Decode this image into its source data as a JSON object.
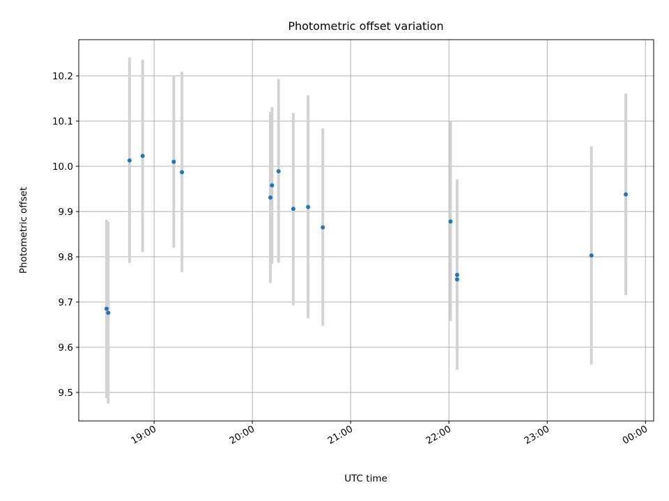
{
  "chart_data": {
    "type": "scatter",
    "title": "Photometric offset variation",
    "xlabel": "UTC time",
    "ylabel": "Photometric offset",
    "xlim": [
      "18:14",
      "00:05"
    ],
    "ylim": [
      9.437,
      10.28
    ],
    "x_ticks": [
      "19:00",
      "20:00",
      "21:00",
      "22:00",
      "23:00",
      "00:00"
    ],
    "y_ticks": [
      9.5,
      9.6,
      9.7,
      9.8,
      9.9,
      10.0,
      10.1,
      10.2
    ],
    "grid": true,
    "colors": {
      "points": "#1f77b4",
      "errorbars": "#d3d3d3"
    },
    "series": [
      {
        "points": [
          {
            "x": "18:31",
            "y": 9.685,
            "ylow": 9.488,
            "yhigh": 9.882
          },
          {
            "x": "18:32",
            "y": 9.676,
            "ylow": 9.475,
            "yhigh": 9.877
          },
          {
            "x": "18:45",
            "y": 10.013,
            "ylow": 9.786,
            "yhigh": 10.241
          },
          {
            "x": "18:53",
            "y": 10.023,
            "ylow": 9.81,
            "yhigh": 10.236
          },
          {
            "x": "19:12",
            "y": 10.01,
            "ylow": 9.82,
            "yhigh": 10.2
          },
          {
            "x": "19:17",
            "y": 9.987,
            "ylow": 9.766,
            "yhigh": 10.209
          },
          {
            "x": "20:11",
            "y": 9.931,
            "ylow": 9.742,
            "yhigh": 10.12
          },
          {
            "x": "20:12",
            "y": 9.958,
            "ylow": 9.784,
            "yhigh": 10.131
          },
          {
            "x": "20:16",
            "y": 9.989,
            "ylow": 9.787,
            "yhigh": 10.193
          },
          {
            "x": "20:25",
            "y": 9.906,
            "ylow": 9.693,
            "yhigh": 10.118
          },
          {
            "x": "20:34",
            "y": 9.91,
            "ylow": 9.664,
            "yhigh": 10.157
          },
          {
            "x": "20:43",
            "y": 9.865,
            "ylow": 9.647,
            "yhigh": 10.084
          },
          {
            "x": "22:01",
            "y": 9.878,
            "ylow": 9.658,
            "yhigh": 10.099
          },
          {
            "x": "22:05",
            "y": 9.75,
            "ylow": 9.572,
            "yhigh": 9.928
          },
          {
            "x": "22:05",
            "y": 9.76,
            "ylow": 9.55,
            "yhigh": 9.971
          },
          {
            "x": "23:27",
            "y": 9.803,
            "ylow": 9.562,
            "yhigh": 10.044
          },
          {
            "x": "23:48",
            "y": 9.938,
            "ylow": 9.715,
            "yhigh": 10.161
          }
        ]
      }
    ]
  }
}
